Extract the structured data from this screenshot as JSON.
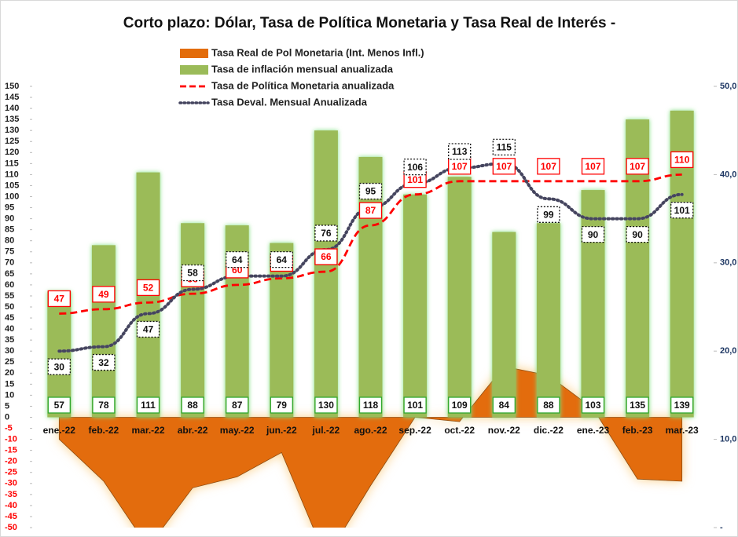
{
  "chart_data": {
    "type": "combo",
    "title": "Corto plazo: Dólar, Tasa de Política Monetaria y Tasa Real de Interés -",
    "categories": [
      "ene.-22",
      "feb.-22",
      "mar.-22",
      "abr.-22",
      "may.-22",
      "jun.-22",
      "jul.-22",
      "ago.-22",
      "sep.-22",
      "oct.-22",
      "nov.-22",
      "dic.-22",
      "ene.-23",
      "feb.-23",
      "mar.-23"
    ],
    "series": [
      {
        "name": "Tasa Real de Pol Monetaria (Int. Menos Infl.)",
        "type": "area",
        "color": "#e36c0a",
        "values": [
          -10,
          -29,
          -59,
          -32,
          -27,
          -16,
          -64,
          -31,
          0,
          -2,
          23,
          19,
          4,
          -28,
          -29
        ]
      },
      {
        "name": "Tasa de inflación mensual anualizada",
        "type": "bar",
        "color": "#9bbb59",
        "values": [
          57,
          78,
          111,
          88,
          87,
          79,
          130,
          118,
          101,
          109,
          84,
          88,
          103,
          135,
          139
        ]
      },
      {
        "name": "Tasa de Política Monetaria anualizada",
        "type": "line",
        "style": "dashed",
        "color": "#ff0000",
        "values": [
          47,
          49,
          52,
          56,
          60,
          63,
          66,
          87,
          101,
          107,
          107,
          107,
          107,
          107,
          110
        ]
      },
      {
        "name": "Tasa Deval. Mensual Anualizada",
        "type": "line",
        "style": "dotted",
        "color": "#44445e",
        "values": [
          30,
          32,
          47,
          58,
          64,
          64,
          76,
          95,
          106,
          113,
          115,
          99,
          90,
          90,
          101
        ]
      }
    ],
    "ylim": [
      -50,
      150
    ],
    "yticks": [
      -50,
      -45,
      -40,
      -35,
      -30,
      -25,
      -20,
      -15,
      -10,
      -5,
      0,
      5,
      10,
      15,
      20,
      25,
      30,
      35,
      40,
      45,
      50,
      55,
      60,
      65,
      70,
      75,
      80,
      85,
      90,
      95,
      100,
      105,
      110,
      115,
      120,
      125,
      130,
      135,
      140,
      145,
      150
    ],
    "y2lim": [
      0,
      50
    ],
    "y2ticks": [
      {
        "value": 0,
        "label": "-"
      },
      {
        "value": 10,
        "label": "10,0"
      },
      {
        "value": 20,
        "label": "20,0"
      },
      {
        "value": 30,
        "label": "30,0"
      },
      {
        "value": 40,
        "label": "40,0"
      },
      {
        "value": 50,
        "label": "50,0"
      }
    ],
    "grid": false
  }
}
